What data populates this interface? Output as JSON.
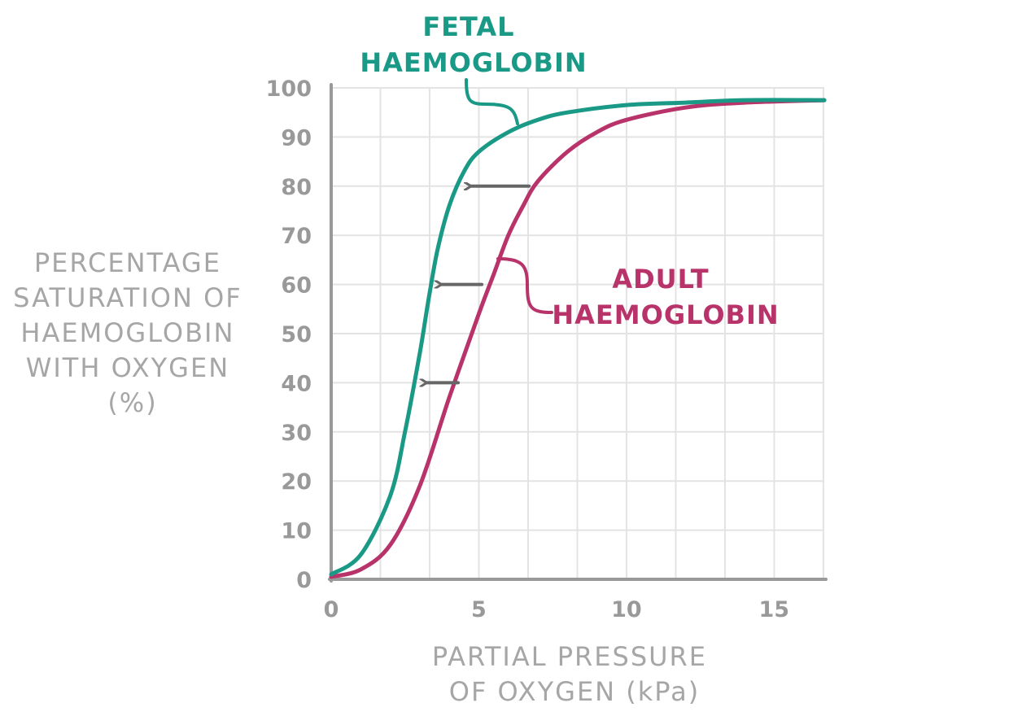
{
  "chart_data": {
    "type": "line",
    "xlabel": [
      "PARTIAL PRESSURE",
      "OF OXYGEN (kPa)"
    ],
    "ylabel": [
      "PERCENTAGE",
      "SATURATION OF",
      "HAEMOGLOBIN",
      "WITH OXYGEN",
      "(%)"
    ],
    "xlim": [
      0,
      16.7
    ],
    "ylim": [
      0,
      100
    ],
    "x_ticks": [
      "0",
      "5",
      "10",
      "15"
    ],
    "y_ticks": [
      "0",
      "10",
      "20",
      "30",
      "40",
      "50",
      "60",
      "70",
      "80",
      "90",
      "100"
    ],
    "grid": true,
    "series": [
      {
        "name": [
          "FETAL",
          "HAEMOGLOBIN"
        ],
        "color": "#1a9a86",
        "x": [
          0,
          1,
          2,
          2.5,
          3,
          3.3,
          3.6,
          4,
          4.5,
          5,
          6,
          7,
          8,
          10,
          12,
          14,
          16.7
        ],
        "y": [
          1,
          5,
          17,
          30,
          46,
          57,
          67,
          76,
          83,
          87,
          91,
          93.5,
          95,
          96.5,
          97,
          97.5,
          97.5
        ]
      },
      {
        "name": [
          "ADULT",
          "HAEMOGLOBIN"
        ],
        "color": "#b8336a",
        "x": [
          0,
          1,
          2,
          3,
          4,
          5,
          5.5,
          6,
          6.5,
          7,
          8,
          9,
          10,
          12,
          14,
          16.7
        ],
        "y": [
          0.5,
          2,
          7,
          19,
          37,
          54,
          62,
          70,
          76,
          81,
          87,
          91,
          93.5,
          96,
          97,
          97.5
        ]
      }
    ],
    "arrows": [
      {
        "from": [
          6.7,
          80
        ],
        "to": [
          4.6,
          80
        ]
      },
      {
        "from": [
          5.1,
          60
        ],
        "to": [
          3.6,
          60
        ]
      },
      {
        "from": [
          4.3,
          40
        ],
        "to": [
          3.1,
          40
        ]
      }
    ]
  }
}
